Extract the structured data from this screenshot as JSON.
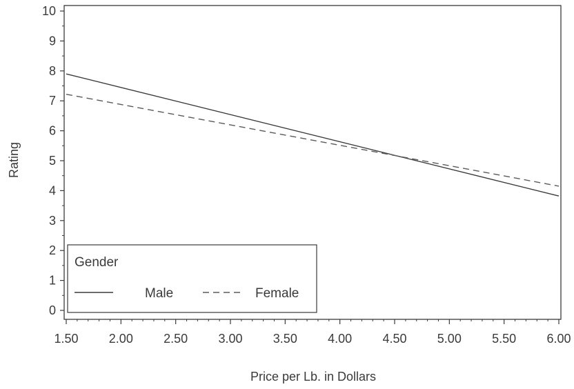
{
  "chart_data": {
    "type": "line",
    "title": "",
    "xlabel": "Price per Lb. in Dollars",
    "ylabel": "Rating",
    "xlim": [
      1.5,
      6.0
    ],
    "ylim": [
      0,
      10
    ],
    "x_ticks": [
      "1.50",
      "2.00",
      "2.50",
      "3.00",
      "3.50",
      "4.00",
      "4.50",
      "5.00",
      "5.50",
      "6.00"
    ],
    "y_ticks": [
      "0",
      "1",
      "2",
      "3",
      "4",
      "5",
      "6",
      "7",
      "8",
      "9",
      "10"
    ],
    "grid": false,
    "legend": {
      "title": "Gender",
      "placement": "bottom-left"
    },
    "series": [
      {
        "name": "Male",
        "style": "solid",
        "color": "#3a3a3a",
        "x": [
          1.5,
          6.0
        ],
        "y": [
          7.9,
          3.82
        ]
      },
      {
        "name": "Female",
        "style": "dashed",
        "color": "#5a5a5a",
        "x": [
          1.5,
          6.0
        ],
        "y": [
          7.22,
          4.15
        ]
      }
    ]
  }
}
